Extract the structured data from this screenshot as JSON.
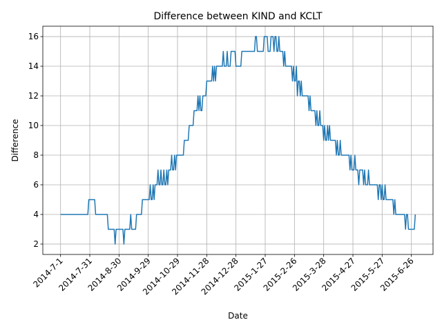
{
  "chart_data": {
    "type": "line",
    "title": "Difference between KIND and KCLT",
    "x_label": "Date",
    "y_label": "Difference",
    "color": "#1f77b4",
    "grid": true,
    "xlim": [
      -18.2,
      382.2
    ],
    "ylim": [
      1.3,
      16.7
    ],
    "xticks": [
      {
        "value": 0,
        "label": "2014-7-1"
      },
      {
        "value": 30,
        "label": "2014-7-31"
      },
      {
        "value": 60,
        "label": "2014-8-30"
      },
      {
        "value": 90,
        "label": "2014-9-29"
      },
      {
        "value": 120,
        "label": "2014-10-29"
      },
      {
        "value": 150,
        "label": "2014-11-28"
      },
      {
        "value": 180,
        "label": "2014-12-28"
      },
      {
        "value": 210,
        "label": "2015-1-27"
      },
      {
        "value": 240,
        "label": "2015-2-26"
      },
      {
        "value": 270,
        "label": "2015-3-28"
      },
      {
        "value": 300,
        "label": "2015-4-27"
      },
      {
        "value": 330,
        "label": "2015-5-27"
      },
      {
        "value": 360,
        "label": "2015-6-26"
      }
    ],
    "yticks": [
      2,
      4,
      6,
      8,
      10,
      12,
      14,
      16
    ],
    "x": [
      0,
      28,
      29,
      35,
      36,
      48,
      49,
      55,
      56,
      57,
      64,
      65,
      66,
      71,
      72,
      73,
      77,
      78,
      83,
      84,
      91,
      92,
      93,
      94,
      95,
      96,
      97,
      99,
      100,
      101,
      102,
      103,
      104,
      105,
      106,
      107,
      108,
      109,
      110,
      111,
      113,
      114,
      115,
      116,
      117,
      118,
      119,
      126,
      127,
      131,
      132,
      136,
      137,
      140,
      141,
      142,
      143,
      144,
      145,
      146,
      149,
      150,
      155,
      156,
      157,
      158,
      159,
      160,
      166,
      167,
      168,
      170,
      171,
      172,
      174,
      175,
      179,
      180,
      185,
      186,
      199,
      200,
      201,
      202,
      208,
      209,
      212,
      213,
      215,
      216,
      218,
      219,
      220,
      221,
      222,
      223,
      224,
      225,
      228,
      229,
      230,
      231,
      237,
      238,
      239,
      240,
      241,
      242,
      243,
      244,
      245,
      246,
      247,
      248,
      254,
      255,
      256,
      257,
      261,
      262,
      263,
      264,
      265,
      266,
      267,
      269,
      270,
      271,
      272,
      273,
      274,
      275,
      276,
      277,
      282,
      283,
      284,
      285,
      286,
      287,
      288,
      296,
      297,
      298,
      299,
      301,
      302,
      303,
      305,
      306,
      307,
      310,
      311,
      312,
      313,
      315,
      316,
      317,
      325,
      326,
      327,
      328,
      329,
      330,
      331,
      332,
      333,
      334,
      341,
      342,
      343,
      344,
      353,
      354,
      355,
      356,
      357,
      363,
      364
    ],
    "values": [
      4,
      4,
      5,
      5,
      4,
      4,
      3,
      3,
      2,
      3,
      3,
      2,
      3,
      3,
      4,
      3,
      3,
      4,
      4,
      5,
      5,
      6,
      5,
      5,
      6,
      5,
      6,
      6,
      7,
      6,
      6,
      7,
      6,
      6,
      7,
      6,
      6,
      7,
      6,
      7,
      7,
      8,
      7,
      7,
      8,
      7,
      8,
      8,
      9,
      9,
      10,
      10,
      11,
      11,
      12,
      11,
      12,
      11,
      11,
      12,
      12,
      13,
      13,
      14,
      13,
      14,
      13,
      14,
      14,
      15,
      14,
      14,
      15,
      14,
      14,
      15,
      15,
      14,
      14,
      15,
      15,
      16,
      16,
      15,
      15,
      16,
      16,
      15,
      15,
      16,
      16,
      15,
      16,
      16,
      15,
      15,
      16,
      15,
      15,
      14,
      15,
      14,
      14,
      13,
      14,
      13,
      13,
      14,
      12,
      13,
      13,
      12,
      13,
      12,
      12,
      11,
      12,
      11,
      11,
      10,
      11,
      10,
      10,
      11,
      10,
      10,
      9,
      10,
      9,
      9,
      10,
      9,
      10,
      9,
      9,
      8,
      9,
      8,
      8,
      9,
      8,
      8,
      7,
      8,
      7,
      7,
      8,
      7,
      7,
      6,
      7,
      7,
      6,
      7,
      6,
      6,
      7,
      6,
      6,
      5,
      6,
      6,
      5,
      6,
      5,
      5,
      6,
      5,
      5,
      4,
      5,
      4,
      4,
      3,
      4,
      4,
      3,
      3,
      4
    ]
  }
}
